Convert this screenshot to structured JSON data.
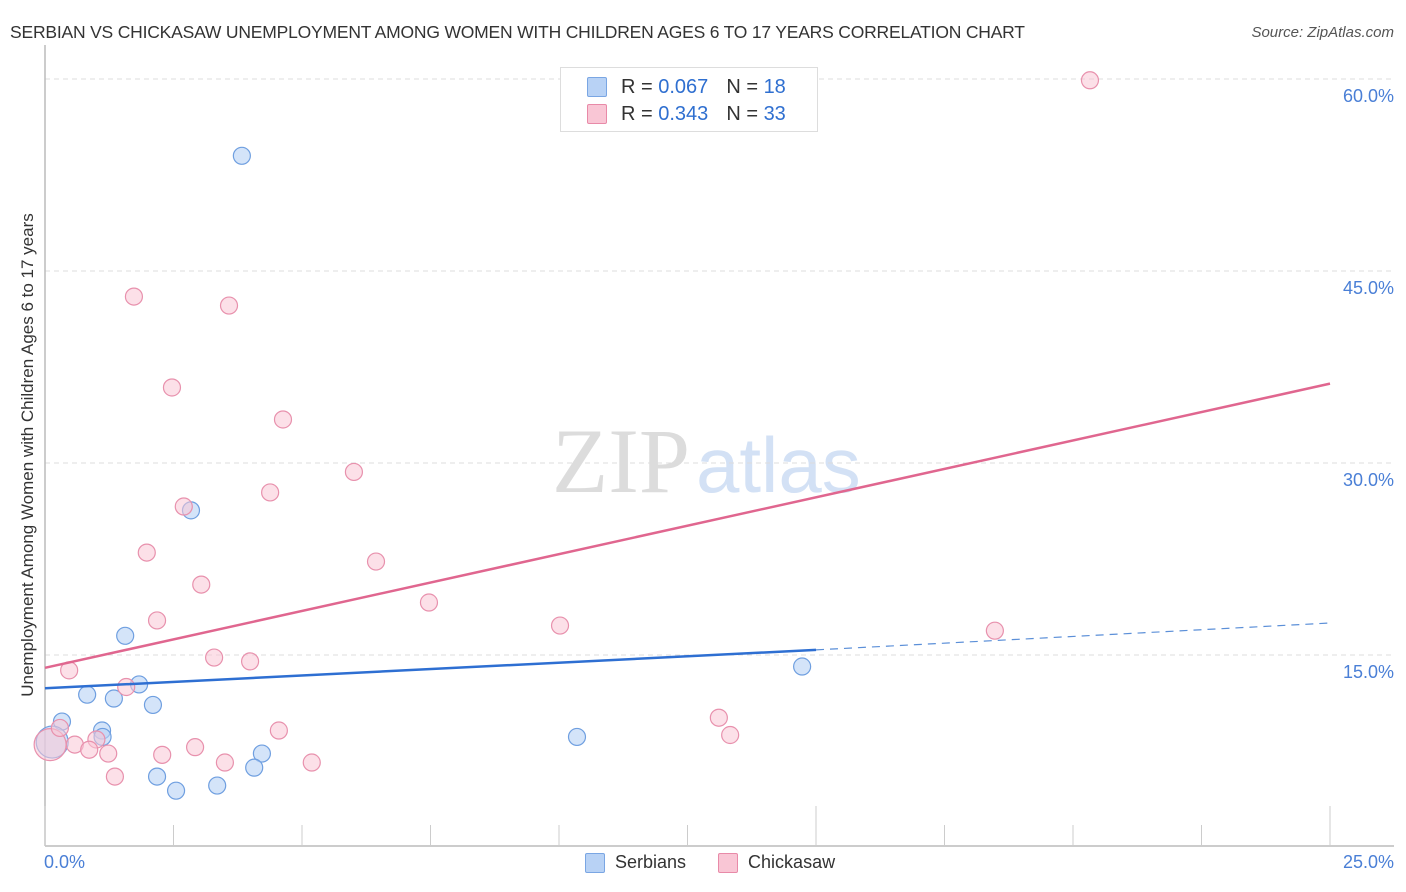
{
  "header": {
    "title": "SERBIAN VS CHICKASAW UNEMPLOYMENT AMONG WOMEN WITH CHILDREN AGES 6 TO 17 YEARS CORRELATION CHART",
    "source": "Source: ZipAtlas.com"
  },
  "watermark": {
    "zip": "ZIP",
    "atlas": "atlas"
  },
  "legend": {
    "rows": [
      {
        "series": "Serbians",
        "r_label": "R =",
        "r_value": "0.067",
        "n_label": "N =",
        "n_value": "18",
        "color": "#b8d2f5",
        "border": "#7aa6e3"
      },
      {
        "series": "Chickasaw",
        "r_label": "R =",
        "r_value": "0.343",
        "n_label": "N =",
        "n_value": "33",
        "color": "#f9c6d5",
        "border": "#e88aa8"
      }
    ],
    "bottom": [
      {
        "label": "Serbians",
        "color": "#b8d2f5",
        "border": "#7aa6e3"
      },
      {
        "label": "Chickasaw",
        "color": "#f9c6d5",
        "border": "#e88aa8"
      }
    ]
  },
  "axes": {
    "ylabel": "Unemployment Among Women with Children Ages 6 to 17 years",
    "yticks": [
      "60.0%",
      "45.0%",
      "30.0%",
      "15.0%"
    ],
    "xticks": [
      "0.0%",
      "25.0%"
    ]
  },
  "chart_data": {
    "type": "scatter",
    "title": "SERBIAN VS CHICKASAW UNEMPLOYMENT AMONG WOMEN WITH CHILDREN AGES 6 TO 17 YEARS CORRELATION CHART",
    "xlabel": "",
    "ylabel": "Unemployment Among Women with Children Ages 6 to 17 years",
    "xlim": [
      0,
      25
    ],
    "ylim": [
      0,
      62
    ],
    "x_tick_labels": [
      "0.0%",
      "25.0%"
    ],
    "y_tick_values": [
      15,
      30,
      45,
      60
    ],
    "y_tick_labels": [
      "15.0%",
      "30.0%",
      "45.0%",
      "60.0%"
    ],
    "grid": "horizontal dashed",
    "legend_position": "top-center and bottom-center",
    "series": [
      {
        "name": "Serbians",
        "color": "#7aa6e3",
        "R": 0.067,
        "N": 18,
        "points": [
          [
            3.83,
            54.0
          ],
          [
            2.84,
            26.3
          ],
          [
            1.56,
            16.5
          ],
          [
            1.83,
            12.7
          ],
          [
            0.82,
            11.9
          ],
          [
            1.34,
            11.6
          ],
          [
            2.1,
            11.1
          ],
          [
            0.33,
            9.8
          ],
          [
            1.11,
            9.1
          ],
          [
            0.14,
            8.2
          ],
          [
            4.22,
            7.3
          ],
          [
            4.07,
            6.2
          ],
          [
            2.18,
            5.5
          ],
          [
            3.35,
            4.8
          ],
          [
            2.55,
            4.4
          ],
          [
            10.35,
            8.6
          ],
          [
            14.73,
            14.1
          ],
          [
            1.12,
            8.6
          ]
        ],
        "trend": {
          "x0": 0,
          "y0": 12.4,
          "x1": 15.0,
          "y1": 15.4,
          "dashed_to_x": 25.0,
          "dashed_to_y": 17.5
        }
      },
      {
        "name": "Chickasaw",
        "color": "#e88aa8",
        "R": 0.343,
        "N": 33,
        "points": [
          [
            20.33,
            59.9
          ],
          [
            1.73,
            43.0
          ],
          [
            3.58,
            42.3
          ],
          [
            2.47,
            35.9
          ],
          [
            4.63,
            33.4
          ],
          [
            6.01,
            29.3
          ],
          [
            4.38,
            27.7
          ],
          [
            2.7,
            26.6
          ],
          [
            1.98,
            23.0
          ],
          [
            6.44,
            22.3
          ],
          [
            3.04,
            20.5
          ],
          [
            7.47,
            19.1
          ],
          [
            2.18,
            17.7
          ],
          [
            10.02,
            17.3
          ],
          [
            18.48,
            16.9
          ],
          [
            3.29,
            14.8
          ],
          [
            3.99,
            14.5
          ],
          [
            0.47,
            13.8
          ],
          [
            1.58,
            12.5
          ],
          [
            13.11,
            10.1
          ],
          [
            4.55,
            9.1
          ],
          [
            13.33,
            8.75
          ],
          [
            1.0,
            8.4
          ],
          [
            0.58,
            8.0
          ],
          [
            0.86,
            7.6
          ],
          [
            1.23,
            7.3
          ],
          [
            2.92,
            7.8
          ],
          [
            2.28,
            7.2
          ],
          [
            3.5,
            6.6
          ],
          [
            5.19,
            6.6
          ],
          [
            1.36,
            5.5
          ],
          [
            0.1,
            8.0
          ],
          [
            0.29,
            9.3
          ]
        ],
        "trend": {
          "x0": 0,
          "y0": 14.0,
          "x1": 25.0,
          "y1": 36.2
        }
      }
    ]
  }
}
